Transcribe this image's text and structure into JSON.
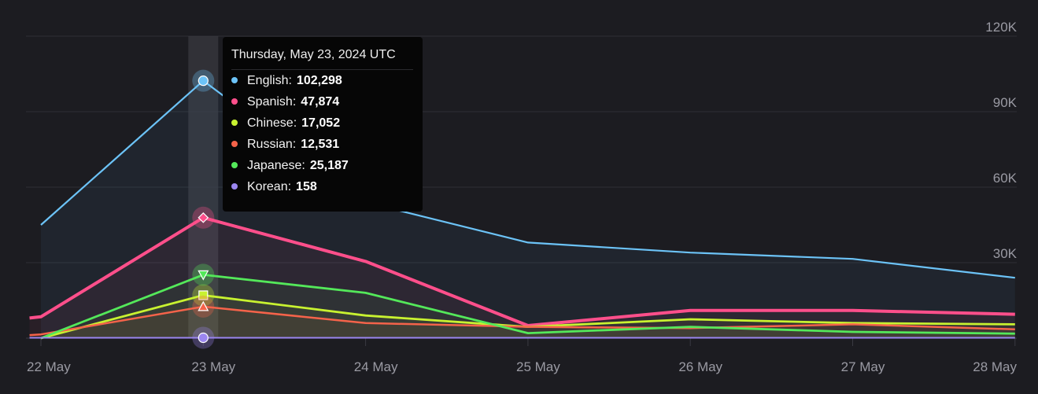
{
  "chart_data": {
    "type": "area",
    "categories": [
      "22 May",
      "23 May",
      "24 May",
      "25 May",
      "26 May",
      "27 May",
      "28 May"
    ],
    "ylim": [
      0,
      120000
    ],
    "yticks": [
      {
        "value": 30000,
        "label": "30K"
      },
      {
        "value": 60000,
        "label": "60K"
      },
      {
        "value": 90000,
        "label": "90K"
      },
      {
        "value": 120000,
        "label": "120K"
      }
    ],
    "grid": true,
    "series": [
      {
        "name": "English",
        "color": "#6cc3f7",
        "marker": "circle",
        "points": [
          [
            0,
            45000
          ],
          [
            1,
            102298
          ],
          [
            2,
            54000
          ],
          [
            3,
            38000
          ],
          [
            4,
            34000
          ],
          [
            5,
            31500
          ],
          [
            6,
            24000
          ]
        ]
      },
      {
        "name": "Spanish",
        "color": "#ff4f8b",
        "marker": "diamond",
        "points": [
          [
            -0.07,
            8000
          ],
          [
            0,
            8500
          ],
          [
            1,
            47874
          ],
          [
            2,
            30500
          ],
          [
            3,
            5000
          ],
          [
            4,
            11000
          ],
          [
            5,
            11000
          ],
          [
            6,
            9500
          ]
        ]
      },
      {
        "name": "Chinese",
        "color": "#c8f230",
        "marker": "square",
        "points": [
          [
            0,
            0
          ],
          [
            1,
            17052
          ],
          [
            2,
            9000
          ],
          [
            3,
            4500
          ],
          [
            4,
            7500
          ],
          [
            5,
            6000
          ],
          [
            6,
            5500
          ]
        ]
      },
      {
        "name": "Russian",
        "color": "#f5634a",
        "marker": "triangle",
        "points": [
          [
            -0.07,
            1200
          ],
          [
            0,
            1500
          ],
          [
            1,
            12531
          ],
          [
            2,
            6000
          ],
          [
            3,
            4500
          ],
          [
            4,
            4000
          ],
          [
            5,
            5500
          ],
          [
            6,
            3500
          ]
        ]
      },
      {
        "name": "Japanese",
        "color": "#54e85a",
        "marker": "triangle-down",
        "points": [
          [
            0,
            0
          ],
          [
            1,
            25187
          ],
          [
            2,
            18000
          ],
          [
            3,
            2000
          ],
          [
            4,
            4500
          ],
          [
            5,
            2500
          ],
          [
            6,
            1800
          ]
        ]
      },
      {
        "name": "Korean",
        "color": "#9b86f0",
        "marker": "circle",
        "points": [
          [
            -0.07,
            158
          ],
          [
            0,
            158
          ],
          [
            1,
            158
          ],
          [
            2,
            158
          ],
          [
            3,
            158
          ],
          [
            4,
            158
          ],
          [
            5,
            158
          ],
          [
            6,
            158
          ]
        ]
      }
    ],
    "highlight_index": 1,
    "tooltip": {
      "title": "Thursday, May 23, 2024 UTC",
      "rows": [
        {
          "name": "English:",
          "value": "102,298",
          "color": "#6cc3f7"
        },
        {
          "name": "Spanish:",
          "value": "47,874",
          "color": "#ff4f8b"
        },
        {
          "name": "Chinese:",
          "value": "17,052",
          "color": "#c8f230"
        },
        {
          "name": "Russian:",
          "value": "12,531",
          "color": "#f5634a"
        },
        {
          "name": "Japanese:",
          "value": "25,187",
          "color": "#54e85a"
        },
        {
          "name": "Korean:",
          "value": "158",
          "color": "#9b86f0"
        }
      ]
    }
  }
}
